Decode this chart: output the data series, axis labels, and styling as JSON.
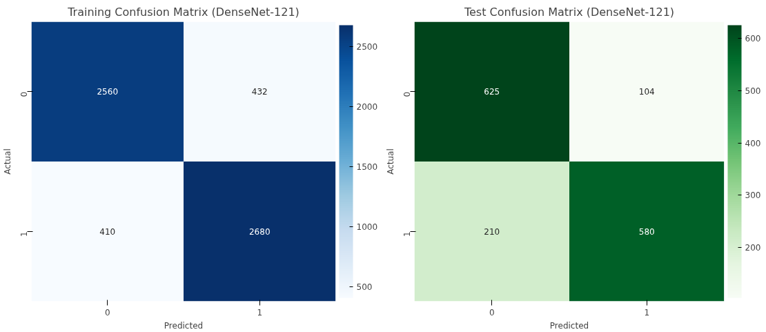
{
  "chart_data": [
    {
      "type": "heatmap",
      "title": "Training Confusion Matrix (DenseNet-121)",
      "xlabel": "Predicted",
      "ylabel": "Actual",
      "categories": [
        "0",
        "1"
      ],
      "y_categories": [
        "0",
        "1"
      ],
      "cells": [
        [
          2560,
          432
        ],
        [
          410,
          2680
        ]
      ],
      "clim": [
        410,
        2680
      ],
      "cticks": [
        500,
        1000,
        1500,
        2000,
        2500
      ],
      "colors": [
        "#f7fbff",
        "#deebf7",
        "#c6dbef",
        "#9ecae1",
        "#6baed6",
        "#4292c6",
        "#2171b5",
        "#08519c",
        "#08306b"
      ],
      "data_labels": true
    },
    {
      "type": "heatmap",
      "title": "Test Confusion Matrix (DenseNet-121)",
      "xlabel": "Predicted",
      "ylabel": "Actual",
      "categories": [
        "0",
        "1"
      ],
      "y_categories": [
        "0",
        "1"
      ],
      "cells": [
        [
          625,
          104
        ],
        [
          210,
          580
        ]
      ],
      "clim": [
        104,
        625
      ],
      "cticks": [
        200,
        300,
        400,
        500,
        600
      ],
      "colors": [
        "#f7fcf5",
        "#e5f5e0",
        "#c7e9c0",
        "#a1d99b",
        "#74c476",
        "#41ab5d",
        "#238b45",
        "#006d2c",
        "#00441b"
      ],
      "data_labels": true
    }
  ]
}
